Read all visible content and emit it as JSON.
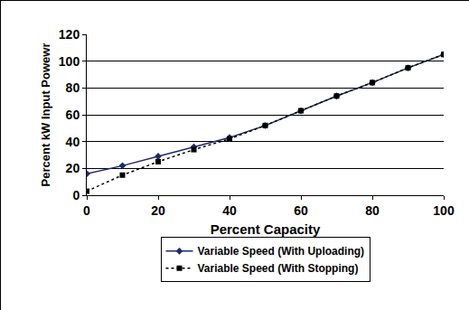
{
  "chart_data": {
    "type": "line",
    "x_label": "Percent Capacity",
    "y_label": "Percent kW Input Powewr",
    "x": [
      0,
      10,
      20,
      30,
      40,
      50,
      60,
      70,
      80,
      90,
      100
    ],
    "series": [
      {
        "name": "Variable Speed (With Uploading)",
        "color": "#1f2a6b",
        "marker": "diamond",
        "line_style": "solid",
        "values": [
          16,
          22,
          29,
          36,
          43,
          52,
          63,
          74,
          84,
          95,
          105
        ]
      },
      {
        "name": "Variable Speed (With Stopping)",
        "color": "#000000",
        "marker": "square",
        "line_style": "dotted",
        "values": [
          3,
          15,
          25,
          34,
          42,
          52,
          63,
          74,
          84,
          95,
          105
        ]
      }
    ],
    "xlim": [
      0,
      100
    ],
    "xticks": [
      0,
      20,
      40,
      60,
      80,
      100
    ],
    "ylim": [
      0,
      120
    ],
    "yticks": [
      0,
      20,
      40,
      60,
      80,
      100,
      120
    ],
    "grid": true,
    "legend": "bottom"
  }
}
